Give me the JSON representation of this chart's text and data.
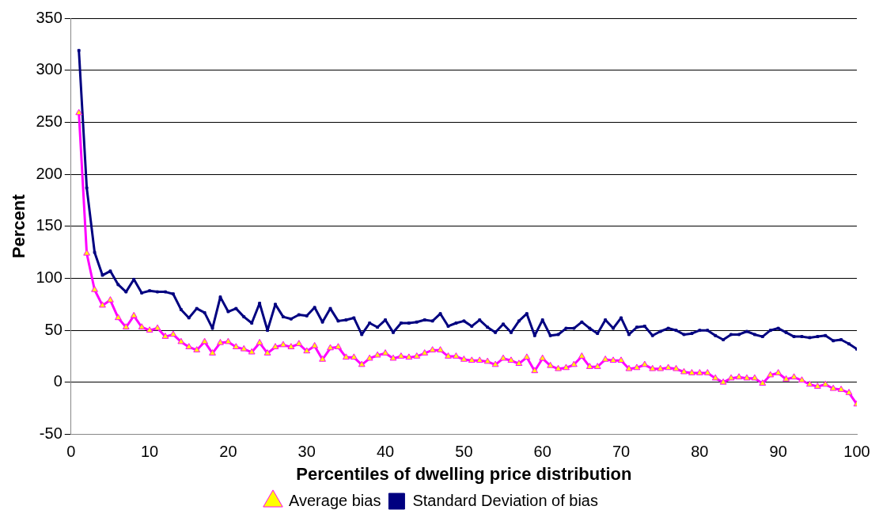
{
  "chart_data": {
    "type": "line",
    "xlabel": "Percentiles of dwelling price distribution",
    "ylabel": "Percent",
    "x": [
      1,
      2,
      3,
      4,
      5,
      6,
      7,
      8,
      9,
      10,
      11,
      12,
      13,
      14,
      15,
      16,
      17,
      18,
      19,
      20,
      21,
      22,
      23,
      24,
      25,
      26,
      27,
      28,
      29,
      30,
      31,
      32,
      33,
      34,
      35,
      36,
      37,
      38,
      39,
      40,
      41,
      42,
      43,
      44,
      45,
      46,
      47,
      48,
      49,
      50,
      51,
      52,
      53,
      54,
      55,
      56,
      57,
      58,
      59,
      60,
      61,
      62,
      63,
      64,
      65,
      66,
      67,
      68,
      69,
      70,
      71,
      72,
      73,
      74,
      75,
      76,
      77,
      78,
      79,
      80,
      81,
      82,
      83,
      84,
      85,
      86,
      87,
      88,
      89,
      90,
      91,
      92,
      93,
      94,
      95,
      96,
      97,
      98,
      99,
      100
    ],
    "series": [
      {
        "name": "Average bias",
        "color": "#ff00ff",
        "marker": "triangle",
        "values": [
          259,
          124,
          89,
          74,
          79,
          62,
          53,
          64,
          53,
          50,
          52,
          44,
          46,
          39,
          34,
          31,
          39,
          28,
          38,
          39,
          34,
          32,
          29,
          38,
          28,
          34,
          36,
          34,
          37,
          30,
          35,
          22,
          33,
          34,
          24,
          24,
          17,
          23,
          26,
          28,
          23,
          25,
          24,
          25,
          28,
          31,
          31,
          25,
          25,
          22,
          21,
          21,
          20,
          17,
          23,
          21,
          18,
          24,
          11,
          23,
          16,
          13,
          14,
          17,
          25,
          15,
          15,
          22,
          21,
          21,
          13,
          14,
          17,
          13,
          13,
          14,
          13,
          10,
          9,
          9,
          9,
          4,
          0,
          4,
          5,
          4,
          4,
          -1,
          7,
          9,
          3,
          5,
          2,
          -2,
          -4,
          -2,
          -6,
          -7,
          -10,
          -21
        ]
      },
      {
        "name": "Standard Deviation of bias",
        "color": "#000080",
        "marker": "square",
        "values": [
          319,
          187,
          125,
          103,
          107,
          94,
          87,
          99,
          86,
          88,
          87,
          87,
          85,
          70,
          62,
          71,
          67,
          52,
          82,
          68,
          71,
          63,
          57,
          76,
          50,
          75,
          63,
          61,
          65,
          64,
          72,
          58,
          71,
          59,
          60,
          62,
          46,
          57,
          53,
          60,
          48,
          57,
          57,
          58,
          60,
          59,
          66,
          54,
          57,
          59,
          54,
          60,
          53,
          48,
          56,
          48,
          59,
          66,
          45,
          60,
          45,
          46,
          52,
          52,
          58,
          52,
          47,
          60,
          52,
          62,
          46,
          53,
          54,
          45,
          49,
          52,
          50,
          46,
          47,
          50,
          50,
          45,
          41,
          46,
          46,
          49,
          46,
          44,
          50,
          52,
          48,
          44,
          44,
          43,
          44,
          45,
          40,
          41,
          37,
          32
        ]
      }
    ],
    "xlim": [
      0,
      100
    ],
    "xticks": [
      0,
      10,
      20,
      30,
      40,
      50,
      60,
      70,
      80,
      90,
      100
    ],
    "ylim": [
      -50,
      350
    ],
    "yticks": [
      -50,
      0,
      50,
      100,
      150,
      200,
      250,
      300,
      350
    ],
    "grid": "y",
    "legend": "bottom"
  }
}
